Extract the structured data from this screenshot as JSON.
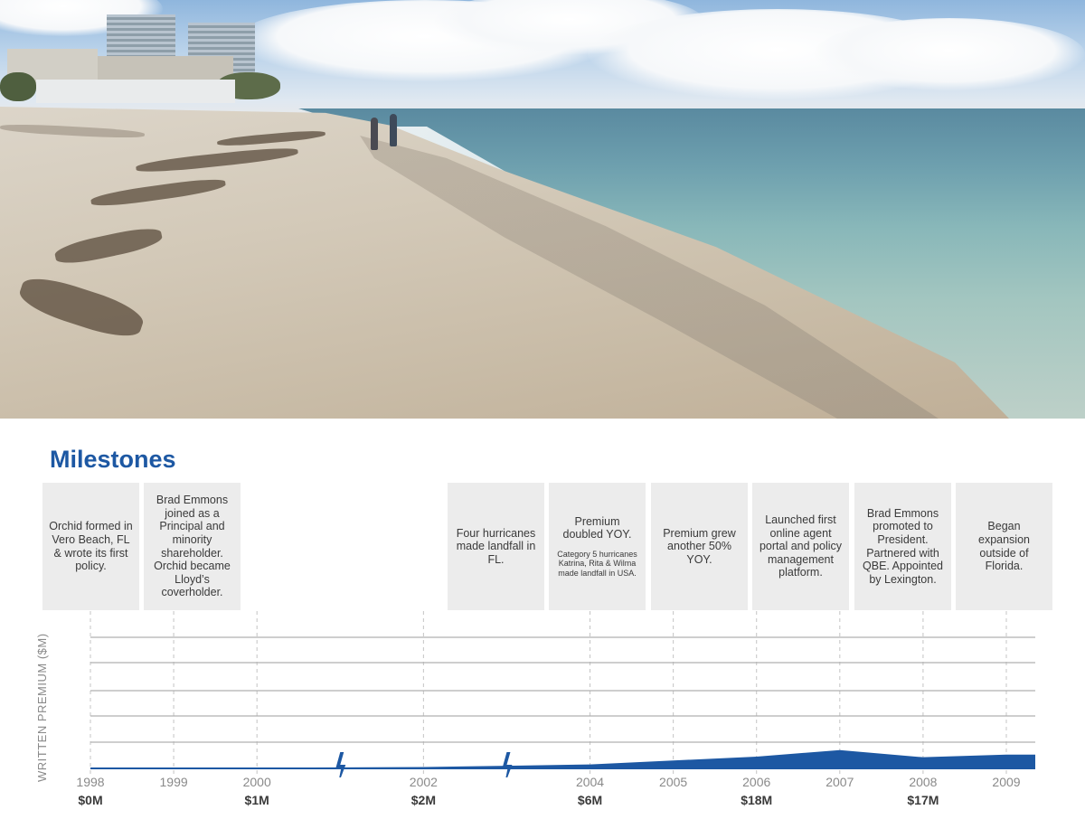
{
  "header": {
    "title": "Milestones"
  },
  "milestones": [
    {
      "text": "Orchid formed in Vero Beach, FL & wrote its first policy.",
      "note": ""
    },
    {
      "text": "Brad Emmons joined as a Principal and minority shareholder. Orchid became Lloyd’s coverholder.",
      "note": ""
    },
    {
      "text": "Four hurricanes made landfall in FL.",
      "note": ""
    },
    {
      "text": "Premium doubled YOY.",
      "note": "Category 5 hurricanes Katrina, Rita & Wilma made landfall in USA."
    },
    {
      "text": "Premium grew another 50% YOY.",
      "note": ""
    },
    {
      "text": "Launched first online agent portal and policy management platform.",
      "note": ""
    },
    {
      "text": "Brad Emmons promoted to President. Partnered with QBE. Appointed by Lexington.",
      "note": ""
    },
    {
      "text": "Began expansion outside of Florida.",
      "note": ""
    }
  ],
  "chart_data": {
    "type": "area",
    "ylabel": "WRITTEN PREMIUM ($M)",
    "x": [
      1998,
      1999,
      2000,
      2001,
      2002,
      2003,
      2004,
      2005,
      2006,
      2007,
      2008,
      2009
    ],
    "x_labels": [
      "1998",
      "1999",
      "2000",
      "",
      "2002",
      "",
      "2004",
      "2005",
      "2006",
      "2007",
      "2008",
      "2009"
    ],
    "premium_labels": [
      "$0M",
      "",
      "$1M",
      "",
      "$2M",
      "",
      "$6M",
      "",
      "$18M",
      "",
      "$17M",
      ""
    ],
    "series": [
      {
        "values": [
          0,
          0.2,
          1,
          1.5,
          2,
          4,
          6,
          12,
          18,
          28,
          17,
          21
        ]
      }
    ],
    "ylim": [
      0,
      200
    ],
    "grid": true,
    "color": "#1d58a3",
    "hurricane_markers": [
      2001,
      2003
    ],
    "hurricane_icon": "lightning-bolt-icon"
  },
  "photo": {
    "description_icon": "beach-photo"
  }
}
